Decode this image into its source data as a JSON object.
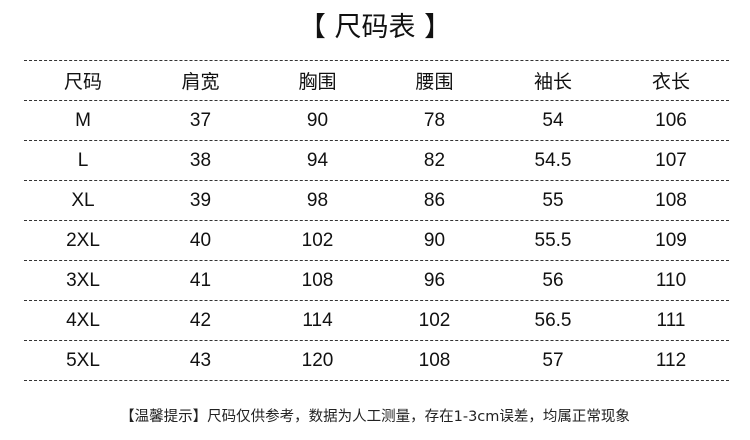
{
  "title": "【 尺码表 】",
  "table": {
    "headers": [
      "尺码",
      "肩宽",
      "胸围",
      "腰围",
      "袖长",
      "衣长"
    ],
    "rows": [
      [
        "M",
        "37",
        "90",
        "78",
        "54",
        "106"
      ],
      [
        "L",
        "38",
        "94",
        "82",
        "54.5",
        "107"
      ],
      [
        "XL",
        "39",
        "98",
        "86",
        "55",
        "108"
      ],
      [
        "2XL",
        "40",
        "102",
        "90",
        "55.5",
        "109"
      ],
      [
        "3XL",
        "41",
        "108",
        "96",
        "56",
        "110"
      ],
      [
        "4XL",
        "42",
        "114",
        "102",
        "56.5",
        "111"
      ],
      [
        "5XL",
        "43",
        "120",
        "108",
        "57",
        "112"
      ]
    ]
  },
  "note": "【温馨提示】尺码仅供参考，数据为人工测量，存在1-3cm误差，均属正常现象"
}
